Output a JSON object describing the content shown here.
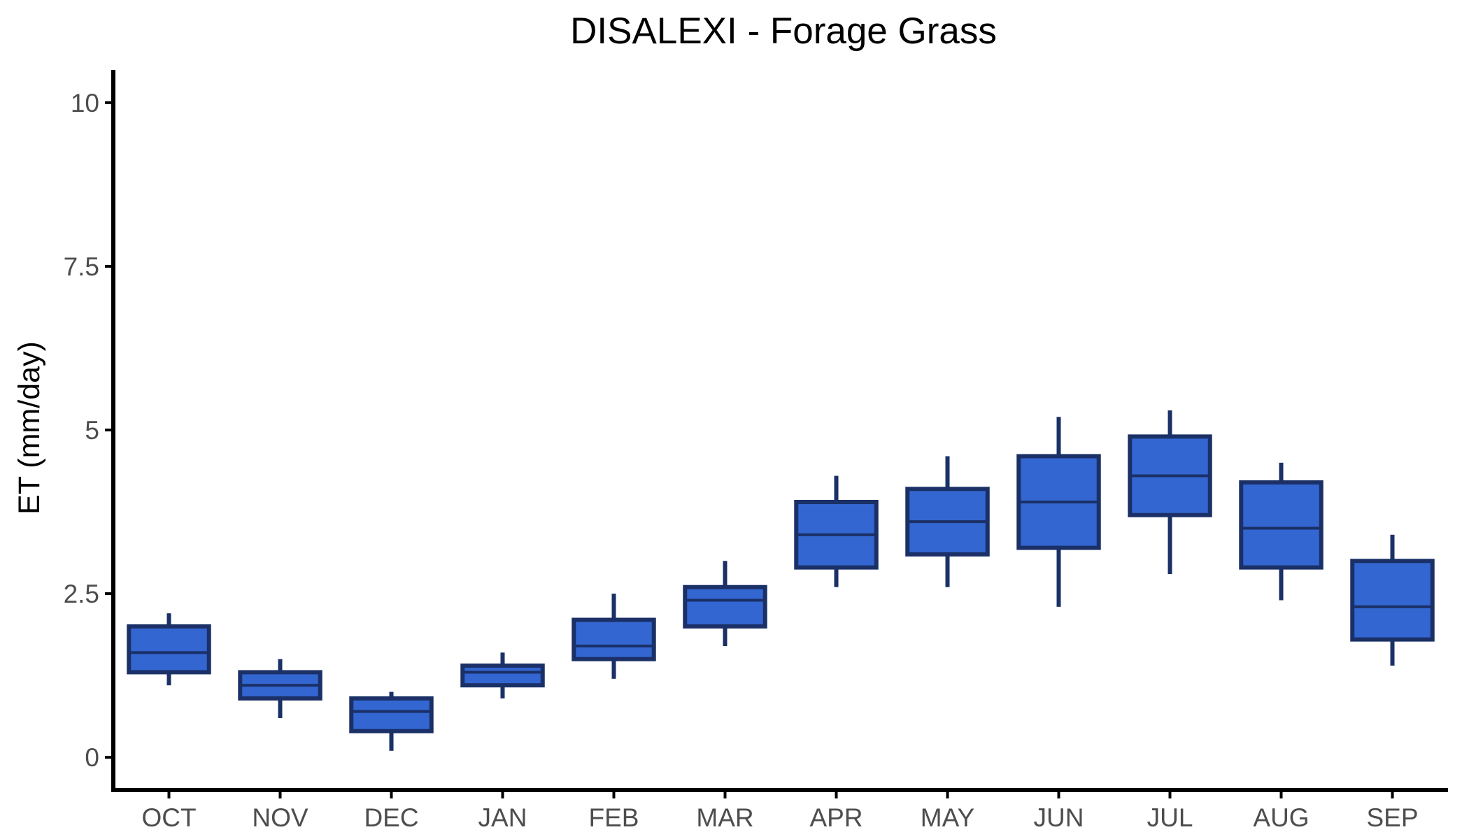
{
  "chart_data": {
    "type": "boxplot",
    "title": "DISALEXI - Forage Grass",
    "xlabel": "",
    "ylabel": "ET (mm/day)",
    "ylim": [
      -0.5,
      10.5
    ],
    "yticks": [
      0,
      2.5,
      5,
      7.5,
      10
    ],
    "ytick_labels": [
      "0",
      "2.5",
      "5",
      "7.5",
      "10"
    ],
    "grid": false,
    "legend": "none",
    "colors": {
      "box_fill": "#3366d1",
      "box_stroke": "#1a3066",
      "axis": "#000000",
      "tick_text": "#4d4d4d"
    },
    "categories": [
      "OCT",
      "NOV",
      "DEC",
      "JAN",
      "FEB",
      "MAR",
      "APR",
      "MAY",
      "JUN",
      "JUL",
      "AUG",
      "SEP"
    ],
    "boxes": [
      {
        "category": "OCT",
        "min": 1.1,
        "q1": 1.3,
        "median": 1.6,
        "q3": 2.0,
        "max": 2.2
      },
      {
        "category": "NOV",
        "min": 0.6,
        "q1": 0.9,
        "median": 1.1,
        "q3": 1.3,
        "max": 1.5
      },
      {
        "category": "DEC",
        "min": 0.1,
        "q1": 0.4,
        "median": 0.7,
        "q3": 0.9,
        "max": 1.0
      },
      {
        "category": "JAN",
        "min": 0.9,
        "q1": 1.1,
        "median": 1.3,
        "q3": 1.4,
        "max": 1.6
      },
      {
        "category": "FEB",
        "min": 1.2,
        "q1": 1.5,
        "median": 1.7,
        "q3": 2.1,
        "max": 2.5
      },
      {
        "category": "MAR",
        "min": 1.7,
        "q1": 2.0,
        "median": 2.4,
        "q3": 2.6,
        "max": 3.0
      },
      {
        "category": "APR",
        "min": 2.6,
        "q1": 2.9,
        "median": 3.4,
        "q3": 3.9,
        "max": 4.3
      },
      {
        "category": "MAY",
        "min": 2.6,
        "q1": 3.1,
        "median": 3.6,
        "q3": 4.1,
        "max": 4.6
      },
      {
        "category": "JUN",
        "min": 2.3,
        "q1": 3.2,
        "median": 3.9,
        "q3": 4.6,
        "max": 5.2
      },
      {
        "category": "JUL",
        "min": 2.8,
        "q1": 3.7,
        "median": 4.3,
        "q3": 4.9,
        "max": 5.3
      },
      {
        "category": "AUG",
        "min": 2.4,
        "q1": 2.9,
        "median": 3.5,
        "q3": 4.2,
        "max": 4.5
      },
      {
        "category": "SEP",
        "min": 1.4,
        "q1": 1.8,
        "median": 2.3,
        "q3": 3.0,
        "max": 3.4
      }
    ]
  }
}
